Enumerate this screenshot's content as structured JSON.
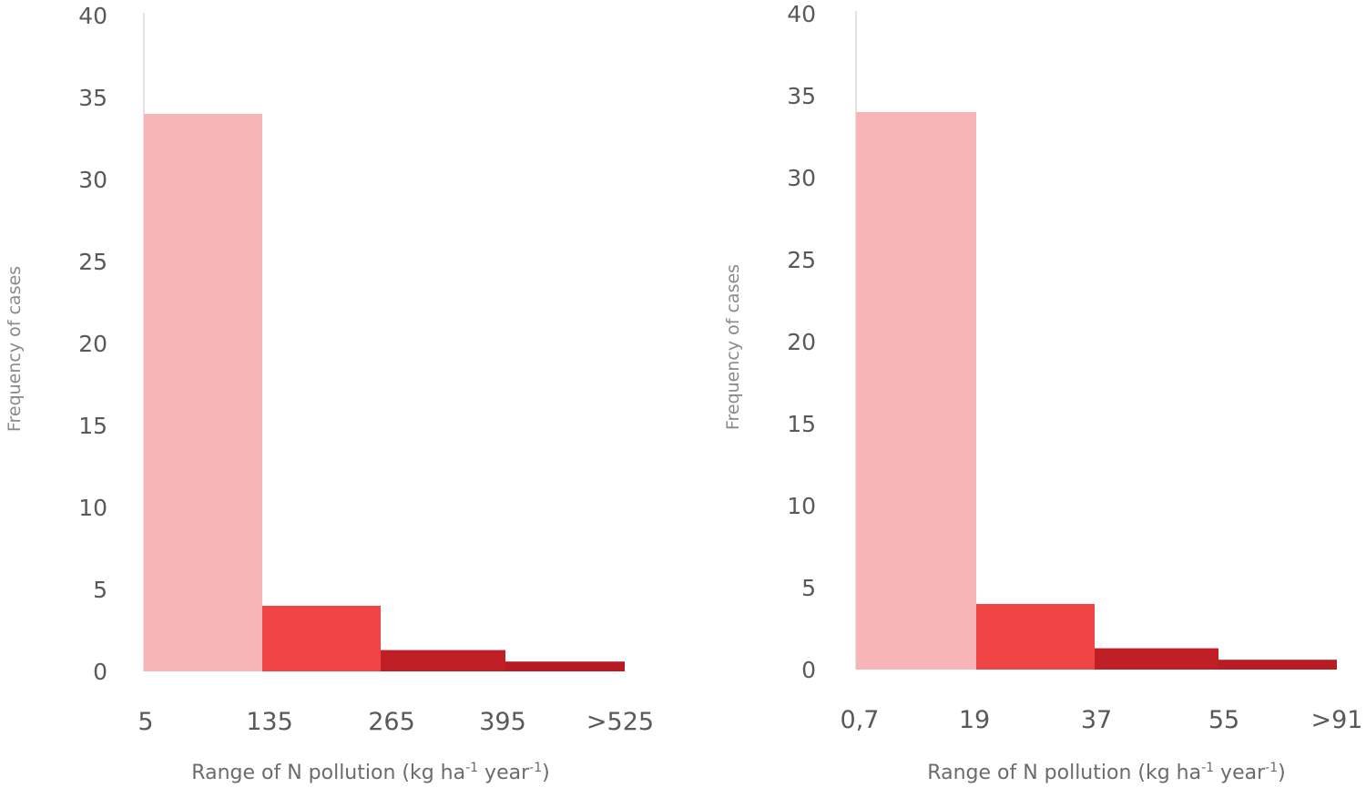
{
  "chart_data": [
    {
      "type": "bar",
      "title": "",
      "xlabel": "Range of N pollution (kg ha-1 year-1)",
      "xlabel_parts": {
        "main": "Range of N pollution (kg ha",
        "sup1": "-1",
        "mid": " year",
        "sup2": "-1",
        "end": ")"
      },
      "ylabel": "Frequency of cases",
      "ylim": [
        0,
        40
      ],
      "yticks": [
        "0",
        "5",
        "10",
        "15",
        "20",
        "25",
        "30",
        "35",
        "40"
      ],
      "bin_edges": [
        "5",
        "135",
        "265",
        "395",
        ">525"
      ],
      "values": [
        34,
        4,
        1.3,
        0.6
      ],
      "colors": [
        "#f7b5b8",
        "#ef4545",
        "#c01f26",
        "#b81c22"
      ],
      "grid": false
    },
    {
      "type": "bar",
      "title": "",
      "xlabel": "Range of N pollution (kg ha-1 year-1)",
      "xlabel_parts": {
        "main": "Range of N pollution (kg ha",
        "sup1": "-1",
        "mid": " year",
        "sup2": "-1",
        "end": ")"
      },
      "ylabel": "Frequency of cases",
      "ylim": [
        0,
        40
      ],
      "yticks": [
        "0",
        "5",
        "10",
        "15",
        "20",
        "25",
        "30",
        "35",
        "40"
      ],
      "bin_edges": [
        "0,7",
        "19",
        "37",
        "55",
        ">91"
      ],
      "values": [
        34,
        4,
        1.3,
        0.6
      ],
      "colors": [
        "#f7b5b8",
        "#ef4545",
        "#c01f26",
        "#b81c22"
      ],
      "grid": false
    }
  ]
}
